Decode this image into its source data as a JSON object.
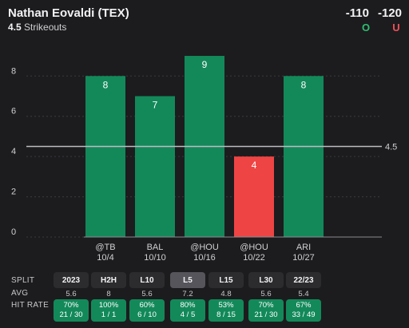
{
  "header": {
    "player": "Nathan Eovaldi (TEX)",
    "line_value": "4.5",
    "line_stat": "Strikeouts",
    "over_odds": "-110",
    "under_odds": "-120",
    "over_label": "O",
    "under_label": "U"
  },
  "colors": {
    "over": "#13895a",
    "under": "#ef4444",
    "background": "#1c1c1e",
    "line": "#bdbdc2"
  },
  "chart_data": {
    "type": "bar",
    "categories": [
      "@TB 10/4",
      "BAL 10/10",
      "@HOU 10/16",
      "@HOU 10/22",
      "ARI 10/27"
    ],
    "opponents": [
      "@TB",
      "BAL",
      "@HOU",
      "@HOU",
      "ARI"
    ],
    "dates": [
      "10/4",
      "10/10",
      "10/16",
      "10/22",
      "10/27"
    ],
    "values": [
      8,
      7,
      9,
      4,
      8
    ],
    "result": [
      "over",
      "over",
      "over",
      "under",
      "over"
    ],
    "threshold": 4.5,
    "threshold_label": "4.5",
    "yticks": [
      0,
      2,
      4,
      6,
      8
    ],
    "ylim": [
      0,
      9.2
    ],
    "grid": true
  },
  "splits": {
    "row_labels": {
      "split": "SPLIT",
      "avg": "AVG",
      "hit_rate": "HIT RATE"
    },
    "items": [
      {
        "label": "2023",
        "avg": "5.6",
        "pct": "70%",
        "record": "21 / 30"
      },
      {
        "label": "H2H",
        "avg": "8",
        "pct": "100%",
        "record": "1 / 1"
      },
      {
        "label": "L10",
        "avg": "5.6",
        "pct": "60%",
        "record": "6 / 10"
      },
      {
        "label": "L5",
        "avg": "7.2",
        "pct": "80%",
        "record": "4 / 5",
        "active": true
      },
      {
        "label": "L15",
        "avg": "4.8",
        "pct": "53%",
        "record": "8 / 15"
      },
      {
        "label": "L30",
        "avg": "5.6",
        "pct": "70%",
        "record": "21 / 30"
      },
      {
        "label": "22/23",
        "avg": "5.4",
        "pct": "67%",
        "record": "33 / 49"
      }
    ]
  }
}
